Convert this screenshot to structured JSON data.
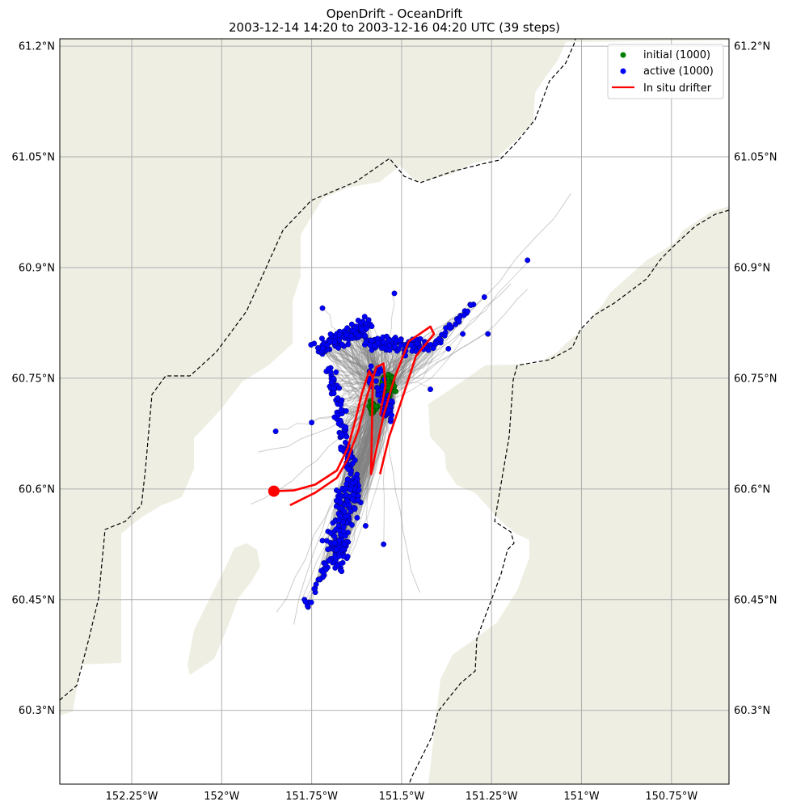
{
  "chart_data": {
    "type": "scatter",
    "title": "OpenDrift - OceanDrift",
    "subtitle": "2003-12-14 14:20 to 2003-12-16 04:20 UTC (39 steps)",
    "xlim": [
      -152.45,
      -150.59
    ],
    "ylim": [
      60.2,
      61.21
    ],
    "x_ticks": [
      -152.25,
      -152.0,
      -151.75,
      -151.5,
      -151.25,
      -151.0,
      -150.75
    ],
    "x_tick_labels": [
      "152.25°W",
      "152°W",
      "151.75°W",
      "151.5°W",
      "151.25°W",
      "151°W",
      "150.75°W"
    ],
    "y_ticks": [
      60.3,
      60.45,
      60.6,
      60.75,
      60.9,
      61.05,
      61.2
    ],
    "y_tick_labels": [
      "60.3°N",
      "60.45°N",
      "60.6°N",
      "60.75°N",
      "60.9°N",
      "61.05°N",
      "61.2°N"
    ],
    "grid": true,
    "legend_position": "top-right",
    "legend": [
      {
        "label": "initial (1000)",
        "color": "#008000",
        "kind": "dot"
      },
      {
        "label": "active (1000)",
        "color": "#0000ff",
        "kind": "dot"
      },
      {
        "label": "In situ drifter",
        "color": "#ff0000",
        "kind": "line"
      }
    ],
    "colors": {
      "land": "#eeeee3",
      "water": "#ffffff",
      "trajectory": "#808080",
      "grid": "#b0b0b0"
    },
    "initial_centers": [
      {
        "lon": -151.54,
        "lat": 60.74,
        "spread_lon": 0.04,
        "spread_lat": 0.035,
        "count": 75
      },
      {
        "lon": -151.58,
        "lat": 60.71,
        "spread_lon": 0.03,
        "spread_lat": 0.02,
        "count": 20
      }
    ],
    "active_points": [
      {
        "lon": -151.15,
        "lat": 60.91
      },
      {
        "lon": -151.52,
        "lat": 60.865
      },
      {
        "lon": -151.72,
        "lat": 60.845
      },
      {
        "lon": -151.27,
        "lat": 60.86
      },
      {
        "lon": -151.26,
        "lat": 60.81
      },
      {
        "lon": -151.33,
        "lat": 60.81
      },
      {
        "lon": -151.85,
        "lat": 60.678
      },
      {
        "lon": -151.75,
        "lat": 60.69
      },
      {
        "lon": -151.55,
        "lat": 60.525
      },
      {
        "lon": -151.42,
        "lat": 60.735
      },
      {
        "lon": -151.37,
        "lat": 60.79
      },
      {
        "lon": -151.3,
        "lat": 60.85
      },
      {
        "lon": -151.76,
        "lat": 60.44
      },
      {
        "lon": -151.77,
        "lat": 60.45
      },
      {
        "lon": -151.74,
        "lat": 60.46
      },
      {
        "lon": -151.72,
        "lat": 60.53
      },
      {
        "lon": -151.66,
        "lat": 60.58
      },
      {
        "lon": -151.6,
        "lat": 60.55
      }
    ],
    "active_bands": [
      {
        "lon0": -151.73,
        "lat0": 60.79,
        "lon1": -151.6,
        "lat1": 60.82,
        "width": 0.04,
        "count": 120
      },
      {
        "lon0": -151.6,
        "lat0": 60.8,
        "lon1": -151.42,
        "lat1": 60.79,
        "width": 0.035,
        "count": 100
      },
      {
        "lon0": -151.42,
        "lat0": 60.79,
        "lon1": -151.3,
        "lat1": 60.85,
        "width": 0.02,
        "count": 30
      },
      {
        "lon0": -151.7,
        "lat0": 60.76,
        "lon1": -151.62,
        "lat1": 60.58,
        "width": 0.03,
        "count": 120
      },
      {
        "lon0": -151.65,
        "lat0": 60.6,
        "lon1": -151.68,
        "lat1": 60.5,
        "width": 0.06,
        "count": 160
      },
      {
        "lon0": -151.7,
        "lat0": 60.5,
        "lon1": -151.77,
        "lat1": 60.44,
        "width": 0.02,
        "count": 20
      },
      {
        "lon0": -151.58,
        "lat0": 60.76,
        "lon1": -151.53,
        "lat1": 60.7,
        "width": 0.04,
        "count": 60
      }
    ],
    "drifter_track": [
      {
        "lon": -151.855,
        "lat": 60.597
      },
      {
        "lon": -151.8,
        "lat": 60.598
      },
      {
        "lon": -151.74,
        "lat": 60.606
      },
      {
        "lon": -151.68,
        "lat": 60.625
      },
      {
        "lon": -151.65,
        "lat": 60.655
      },
      {
        "lon": -151.63,
        "lat": 60.69
      },
      {
        "lon": -151.61,
        "lat": 60.73
      },
      {
        "lon": -151.59,
        "lat": 60.76
      },
      {
        "lon": -151.58,
        "lat": 60.75
      },
      {
        "lon": -151.585,
        "lat": 60.62
      },
      {
        "lon": -151.55,
        "lat": 60.7
      },
      {
        "lon": -151.52,
        "lat": 60.75
      },
      {
        "lon": -151.48,
        "lat": 60.8
      },
      {
        "lon": -151.42,
        "lat": 60.82
      },
      {
        "lon": -151.41,
        "lat": 60.81
      },
      {
        "lon": -151.46,
        "lat": 60.78
      },
      {
        "lon": -151.5,
        "lat": 60.72
      },
      {
        "lon": -151.535,
        "lat": 60.67
      },
      {
        "lon": -151.56,
        "lat": 60.62
      }
    ],
    "drifter_track_2": [
      {
        "lon": -151.81,
        "lat": 60.578
      },
      {
        "lon": -151.74,
        "lat": 60.595
      },
      {
        "lon": -151.68,
        "lat": 60.615
      },
      {
        "lon": -151.65,
        "lat": 60.64
      },
      {
        "lon": -151.62,
        "lat": 60.68
      },
      {
        "lon": -151.6,
        "lat": 60.72
      },
      {
        "lon": -151.57,
        "lat": 60.765
      },
      {
        "lon": -151.55,
        "lat": 60.77
      },
      {
        "lon": -151.545,
        "lat": 60.74
      },
      {
        "lon": -151.56,
        "lat": 60.7
      }
    ],
    "drifter_start": {
      "lon": -151.855,
      "lat": 60.597
    }
  }
}
